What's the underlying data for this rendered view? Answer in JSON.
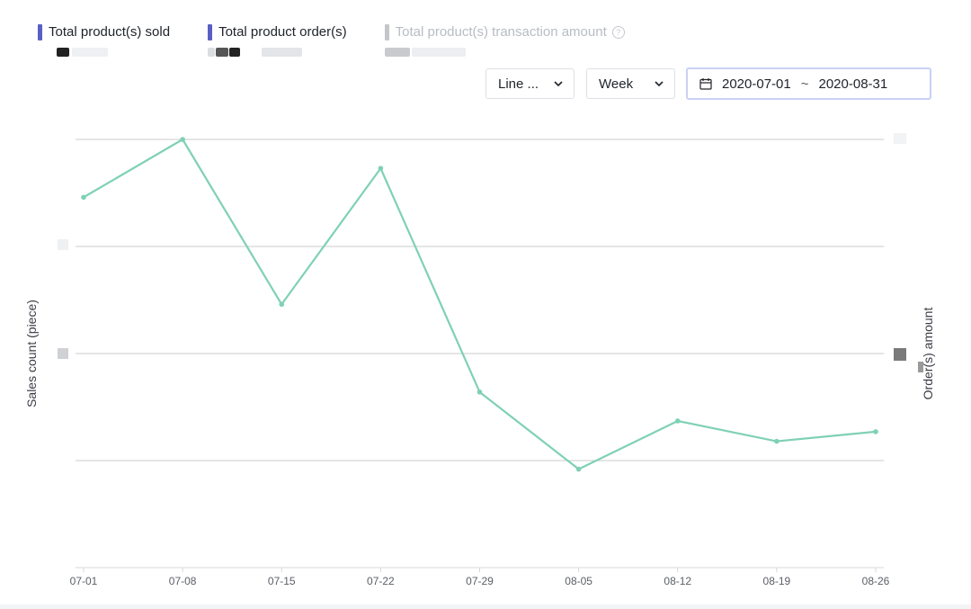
{
  "legend": [
    {
      "label": "Total product(s) sold",
      "color": "#5960c4",
      "active": true,
      "icon": "marker-bar"
    },
    {
      "label": "Total product order(s)",
      "color": "#5960c4",
      "active": true,
      "icon": "marker-bar"
    },
    {
      "label": "Total product(s) transaction amount",
      "color": "#c4c6cb",
      "active": false,
      "icon": "marker-bar",
      "help_icon": "?"
    }
  ],
  "controls": {
    "chart_type": "Line ...",
    "period": "Week",
    "date_from": "2020-07-01",
    "date_separator": "~",
    "date_to": "2020-08-31",
    "calendar_icon": "calendar-icon",
    "dropdown_icon": "chevron-down-icon"
  },
  "chart_data": {
    "type": "line",
    "x": [
      "07-01",
      "07-08",
      "07-15",
      "07-22",
      "07-29",
      "08-05",
      "08-12",
      "08-19",
      "08-26"
    ],
    "series": [
      {
        "color": "#7fd1b4",
        "values": [
          3.46,
          4.0,
          2.46,
          3.73,
          1.64,
          0.92,
          1.37,
          1.18,
          1.27
        ]
      }
    ],
    "ylim": [
      0,
      4
    ],
    "grid": true,
    "ylabel": "Sales count (piece)",
    "y2label": "Order(s) amount",
    "y_tick_labels_hidden": true
  }
}
